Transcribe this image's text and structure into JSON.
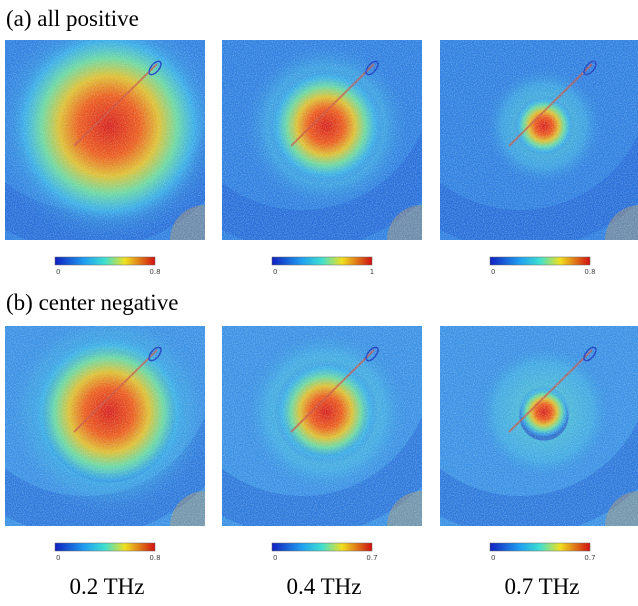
{
  "rows": [
    {
      "label": "(a) all positive",
      "colorbars": [
        {
          "min": 0,
          "max": 0.8
        },
        {
          "min": 0,
          "max": 1
        },
        {
          "min": 0,
          "max": 0.8
        }
      ]
    },
    {
      "label": "(b) center negative",
      "colorbars": [
        {
          "min": 0,
          "max": 0.8
        },
        {
          "min": 0,
          "max": 0.7
        },
        {
          "min": 0,
          "max": 0.7
        }
      ]
    }
  ],
  "frequencies": [
    "0.2 THz",
    "0.4 THz",
    "0.7 THz"
  ]
}
